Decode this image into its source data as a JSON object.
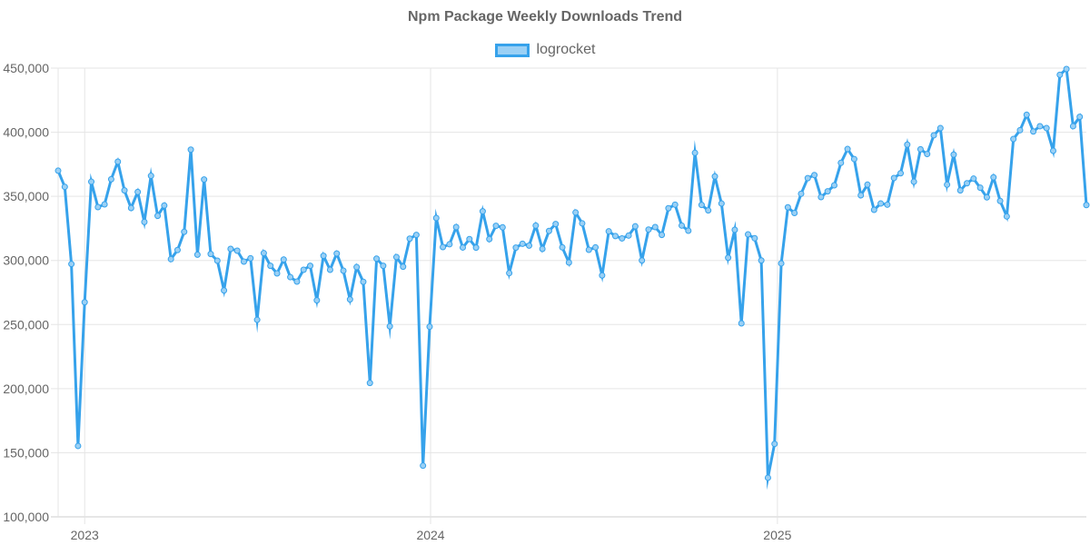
{
  "chart_data": {
    "type": "line",
    "title": "Npm Package Weekly Downloads Trend",
    "xlabel": "",
    "ylabel": "",
    "ylim": [
      100000,
      450000
    ],
    "y_ticks": [
      "100,000",
      "150,000",
      "200,000",
      "250,000",
      "300,000",
      "350,000",
      "400,000",
      "450,000"
    ],
    "x_ticks": [
      "2023",
      "2024",
      "2025"
    ],
    "grid": true,
    "legend_position": "top",
    "x_start": "2022-12-04",
    "x_interval": "1 week",
    "series": [
      {
        "name": "logrocket",
        "color": "#36a2eb",
        "fill": "#9ad0f5",
        "values": [
          370000,
          357400,
          297200,
          155300,
          267400,
          361400,
          341600,
          343700,
          363300,
          377000,
          354600,
          340900,
          353400,
          330000,
          366000,
          334800,
          342800,
          301000,
          308100,
          322300,
          386400,
          304500,
          363100,
          305000,
          299800,
          276600,
          309000,
          307600,
          299100,
          301700,
          253700,
          305700,
          295800,
          289900,
          300700,
          287000,
          283500,
          292700,
          295800,
          268900,
          303600,
          292700,
          305400,
          292000,
          269600,
          294800,
          283300,
          204400,
          301400,
          295800,
          248600,
          302600,
          295100,
          317000,
          319900,
          139900,
          248300,
          333100,
          310400,
          312600,
          326000,
          310100,
          316600,
          310000,
          338300,
          316600,
          327000,
          325800,
          290100,
          310000,
          313000,
          311600,
          327200,
          309000,
          323000,
          328400,
          310200,
          298400,
          337400,
          328900,
          308300,
          310200,
          288300,
          322700,
          319000,
          317200,
          319400,
          326600,
          300000,
          324100,
          326000,
          319900,
          340700,
          343500,
          327200,
          323200,
          383900,
          343300,
          339000,
          365500,
          344400,
          302100,
          323900,
          250900,
          320300,
          317300,
          300000,
          130500,
          156900,
          297700,
          341400,
          337000,
          352000,
          364200,
          366600,
          349400,
          353900,
          358600,
          376100,
          386900,
          379100,
          350800,
          359100,
          339500,
          344400,
          343500,
          364300,
          368000,
          390300,
          361400,
          386700,
          383000,
          397600,
          403200,
          359100,
          382500,
          354600,
          360200,
          363800,
          356700,
          349200,
          364800,
          346400,
          334300,
          394700,
          401600,
          413600,
          400600,
          404700,
          403200,
          385500,
          444800,
          449300,
          404700,
          412000,
          343200
        ]
      }
    ]
  }
}
